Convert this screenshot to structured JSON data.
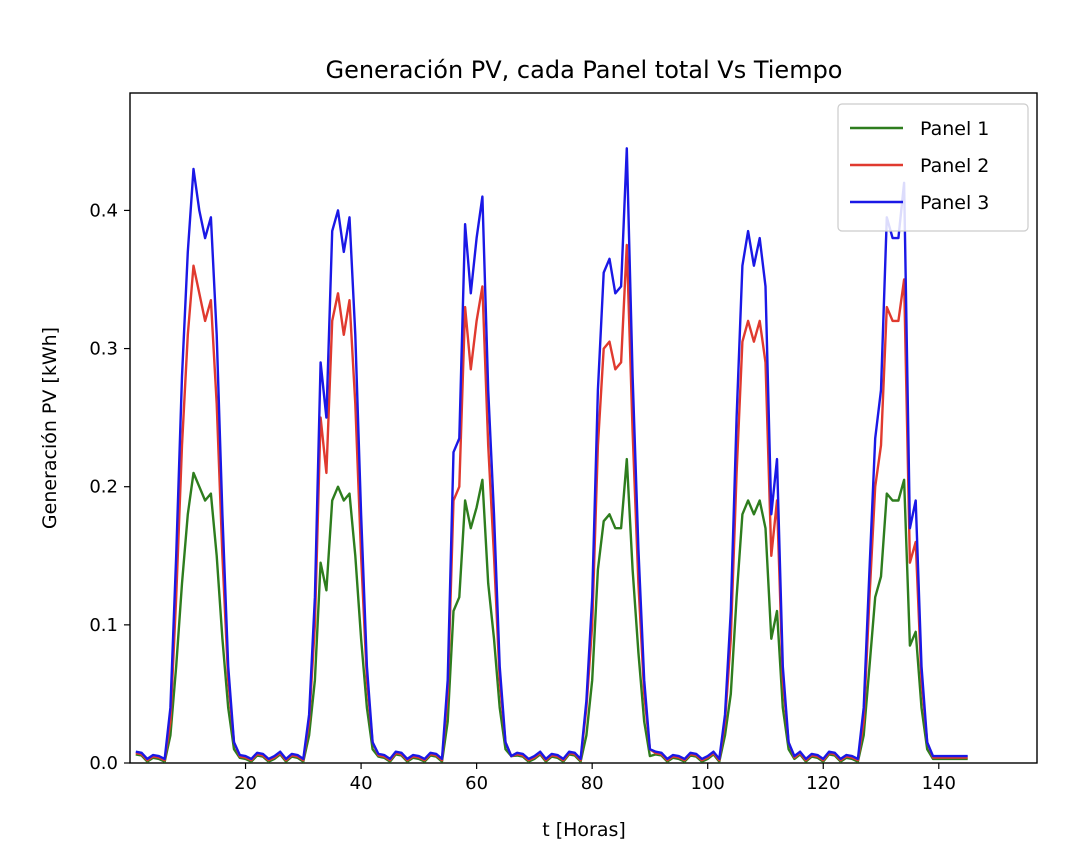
{
  "chart_data": {
    "type": "line",
    "title": "Generación PV, cada Panel total Vs Tiempo",
    "xlabel": "t [Horas]",
    "ylabel": "Generación PV [kWh]",
    "xlim": [
      0,
      157
    ],
    "ylim": [
      0,
      0.485
    ],
    "xticks": [
      20,
      40,
      60,
      80,
      100,
      120,
      140
    ],
    "xtick_labels": [
      "20",
      "40",
      "60",
      "80",
      "100",
      "120",
      "140"
    ],
    "yticks": [
      0.0,
      0.1,
      0.2,
      0.3,
      0.4
    ],
    "ytick_labels": [
      "0.0",
      "0.1",
      "0.2",
      "0.3",
      "0.4"
    ],
    "legend_position": "top-right",
    "series": [
      {
        "name": "Panel 1",
        "color": "#2e7d1e",
        "days": [
          [
            0.02,
            0.07,
            0.13,
            0.18,
            0.21,
            0.2,
            0.19,
            0.195,
            0.15,
            0.09,
            0.04,
            0.01
          ],
          [
            0.02,
            0.06,
            0.145,
            0.125,
            0.19,
            0.2,
            0.19,
            0.195,
            0.15,
            0.09,
            0.04,
            0.01
          ],
          [
            0.03,
            0.11,
            0.12,
            0.19,
            0.17,
            0.185,
            0.205,
            0.13,
            0.09,
            0.04,
            0.01,
            0.005
          ],
          [
            0.02,
            0.06,
            0.14,
            0.175,
            0.18,
            0.17,
            0.17,
            0.22,
            0.14,
            0.08,
            0.03,
            0.005
          ],
          [
            0.02,
            0.05,
            0.12,
            0.18,
            0.19,
            0.18,
            0.19,
            0.17,
            0.09,
            0.11,
            0.04,
            0.01
          ],
          [
            0.02,
            0.07,
            0.12,
            0.135,
            0.195,
            0.19,
            0.19,
            0.205,
            0.085,
            0.095,
            0.04,
            0.01
          ]
        ]
      },
      {
        "name": "Panel 2",
        "color": "#e03a2f",
        "days": [
          [
            0.03,
            0.12,
            0.23,
            0.31,
            0.36,
            0.34,
            0.32,
            0.335,
            0.26,
            0.15,
            0.06,
            0.015
          ],
          [
            0.03,
            0.1,
            0.25,
            0.21,
            0.32,
            0.34,
            0.31,
            0.335,
            0.26,
            0.15,
            0.06,
            0.015
          ],
          [
            0.05,
            0.19,
            0.2,
            0.33,
            0.285,
            0.32,
            0.345,
            0.23,
            0.15,
            0.06,
            0.015,
            0.005
          ],
          [
            0.04,
            0.1,
            0.23,
            0.3,
            0.305,
            0.285,
            0.29,
            0.375,
            0.24,
            0.13,
            0.05,
            0.01
          ],
          [
            0.03,
            0.09,
            0.21,
            0.305,
            0.32,
            0.305,
            0.32,
            0.29,
            0.15,
            0.19,
            0.06,
            0.015
          ],
          [
            0.03,
            0.12,
            0.2,
            0.23,
            0.33,
            0.32,
            0.32,
            0.35,
            0.145,
            0.16,
            0.06,
            0.015
          ]
        ]
      },
      {
        "name": "Panel 3",
        "color": "#1a18e6",
        "days": [
          [
            0.04,
            0.15,
            0.28,
            0.37,
            0.43,
            0.4,
            0.38,
            0.395,
            0.31,
            0.18,
            0.07,
            0.015
          ],
          [
            0.035,
            0.12,
            0.29,
            0.25,
            0.385,
            0.4,
            0.37,
            0.395,
            0.31,
            0.18,
            0.07,
            0.015
          ],
          [
            0.06,
            0.225,
            0.235,
            0.39,
            0.34,
            0.38,
            0.41,
            0.27,
            0.18,
            0.07,
            0.015,
            0.005
          ],
          [
            0.045,
            0.12,
            0.27,
            0.355,
            0.365,
            0.34,
            0.345,
            0.445,
            0.28,
            0.155,
            0.06,
            0.01
          ],
          [
            0.035,
            0.11,
            0.25,
            0.36,
            0.385,
            0.36,
            0.38,
            0.345,
            0.18,
            0.22,
            0.07,
            0.015
          ],
          [
            0.04,
            0.14,
            0.235,
            0.27,
            0.395,
            0.38,
            0.38,
            0.42,
            0.17,
            0.19,
            0.07,
            0.015
          ]
        ]
      }
    ]
  }
}
